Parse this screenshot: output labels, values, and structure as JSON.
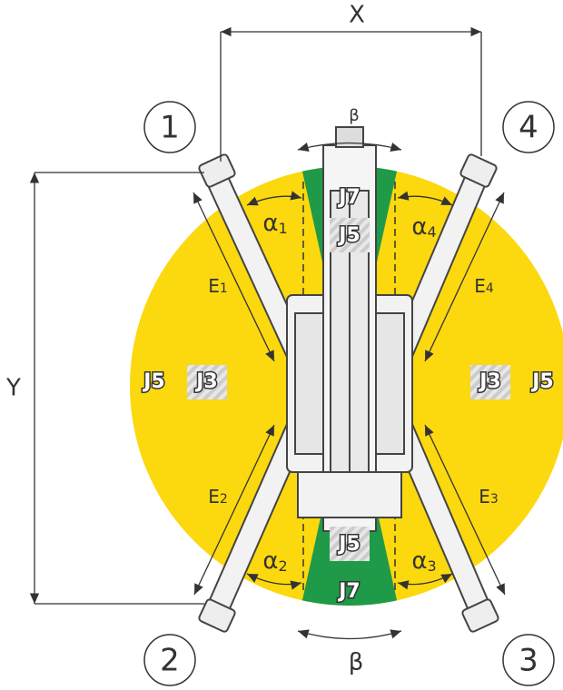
{
  "dimensions": {
    "x": "X",
    "y": "Y"
  },
  "outriggers": [
    {
      "number": "1",
      "angle": "α",
      "angle_index": "1",
      "extension": "E",
      "extension_index": "1"
    },
    {
      "number": "2",
      "angle": "α",
      "angle_index": "2",
      "extension": "E",
      "extension_index": "2"
    },
    {
      "number": "3",
      "angle": "α",
      "angle_index": "3",
      "extension": "E",
      "extension_index": "3"
    },
    {
      "number": "4",
      "angle": "α",
      "angle_index": "4",
      "extension": "E",
      "extension_index": "4"
    }
  ],
  "slew_angle": {
    "top": "β",
    "bottom": "β"
  },
  "zones": {
    "top_outer": "J7",
    "top_inner": "J5",
    "bottom_inner": "J5",
    "bottom_outer": "J7",
    "left_outer": "J5",
    "left_inner": "J3",
    "right_inner": "J3",
    "right_outer": "J5"
  }
}
